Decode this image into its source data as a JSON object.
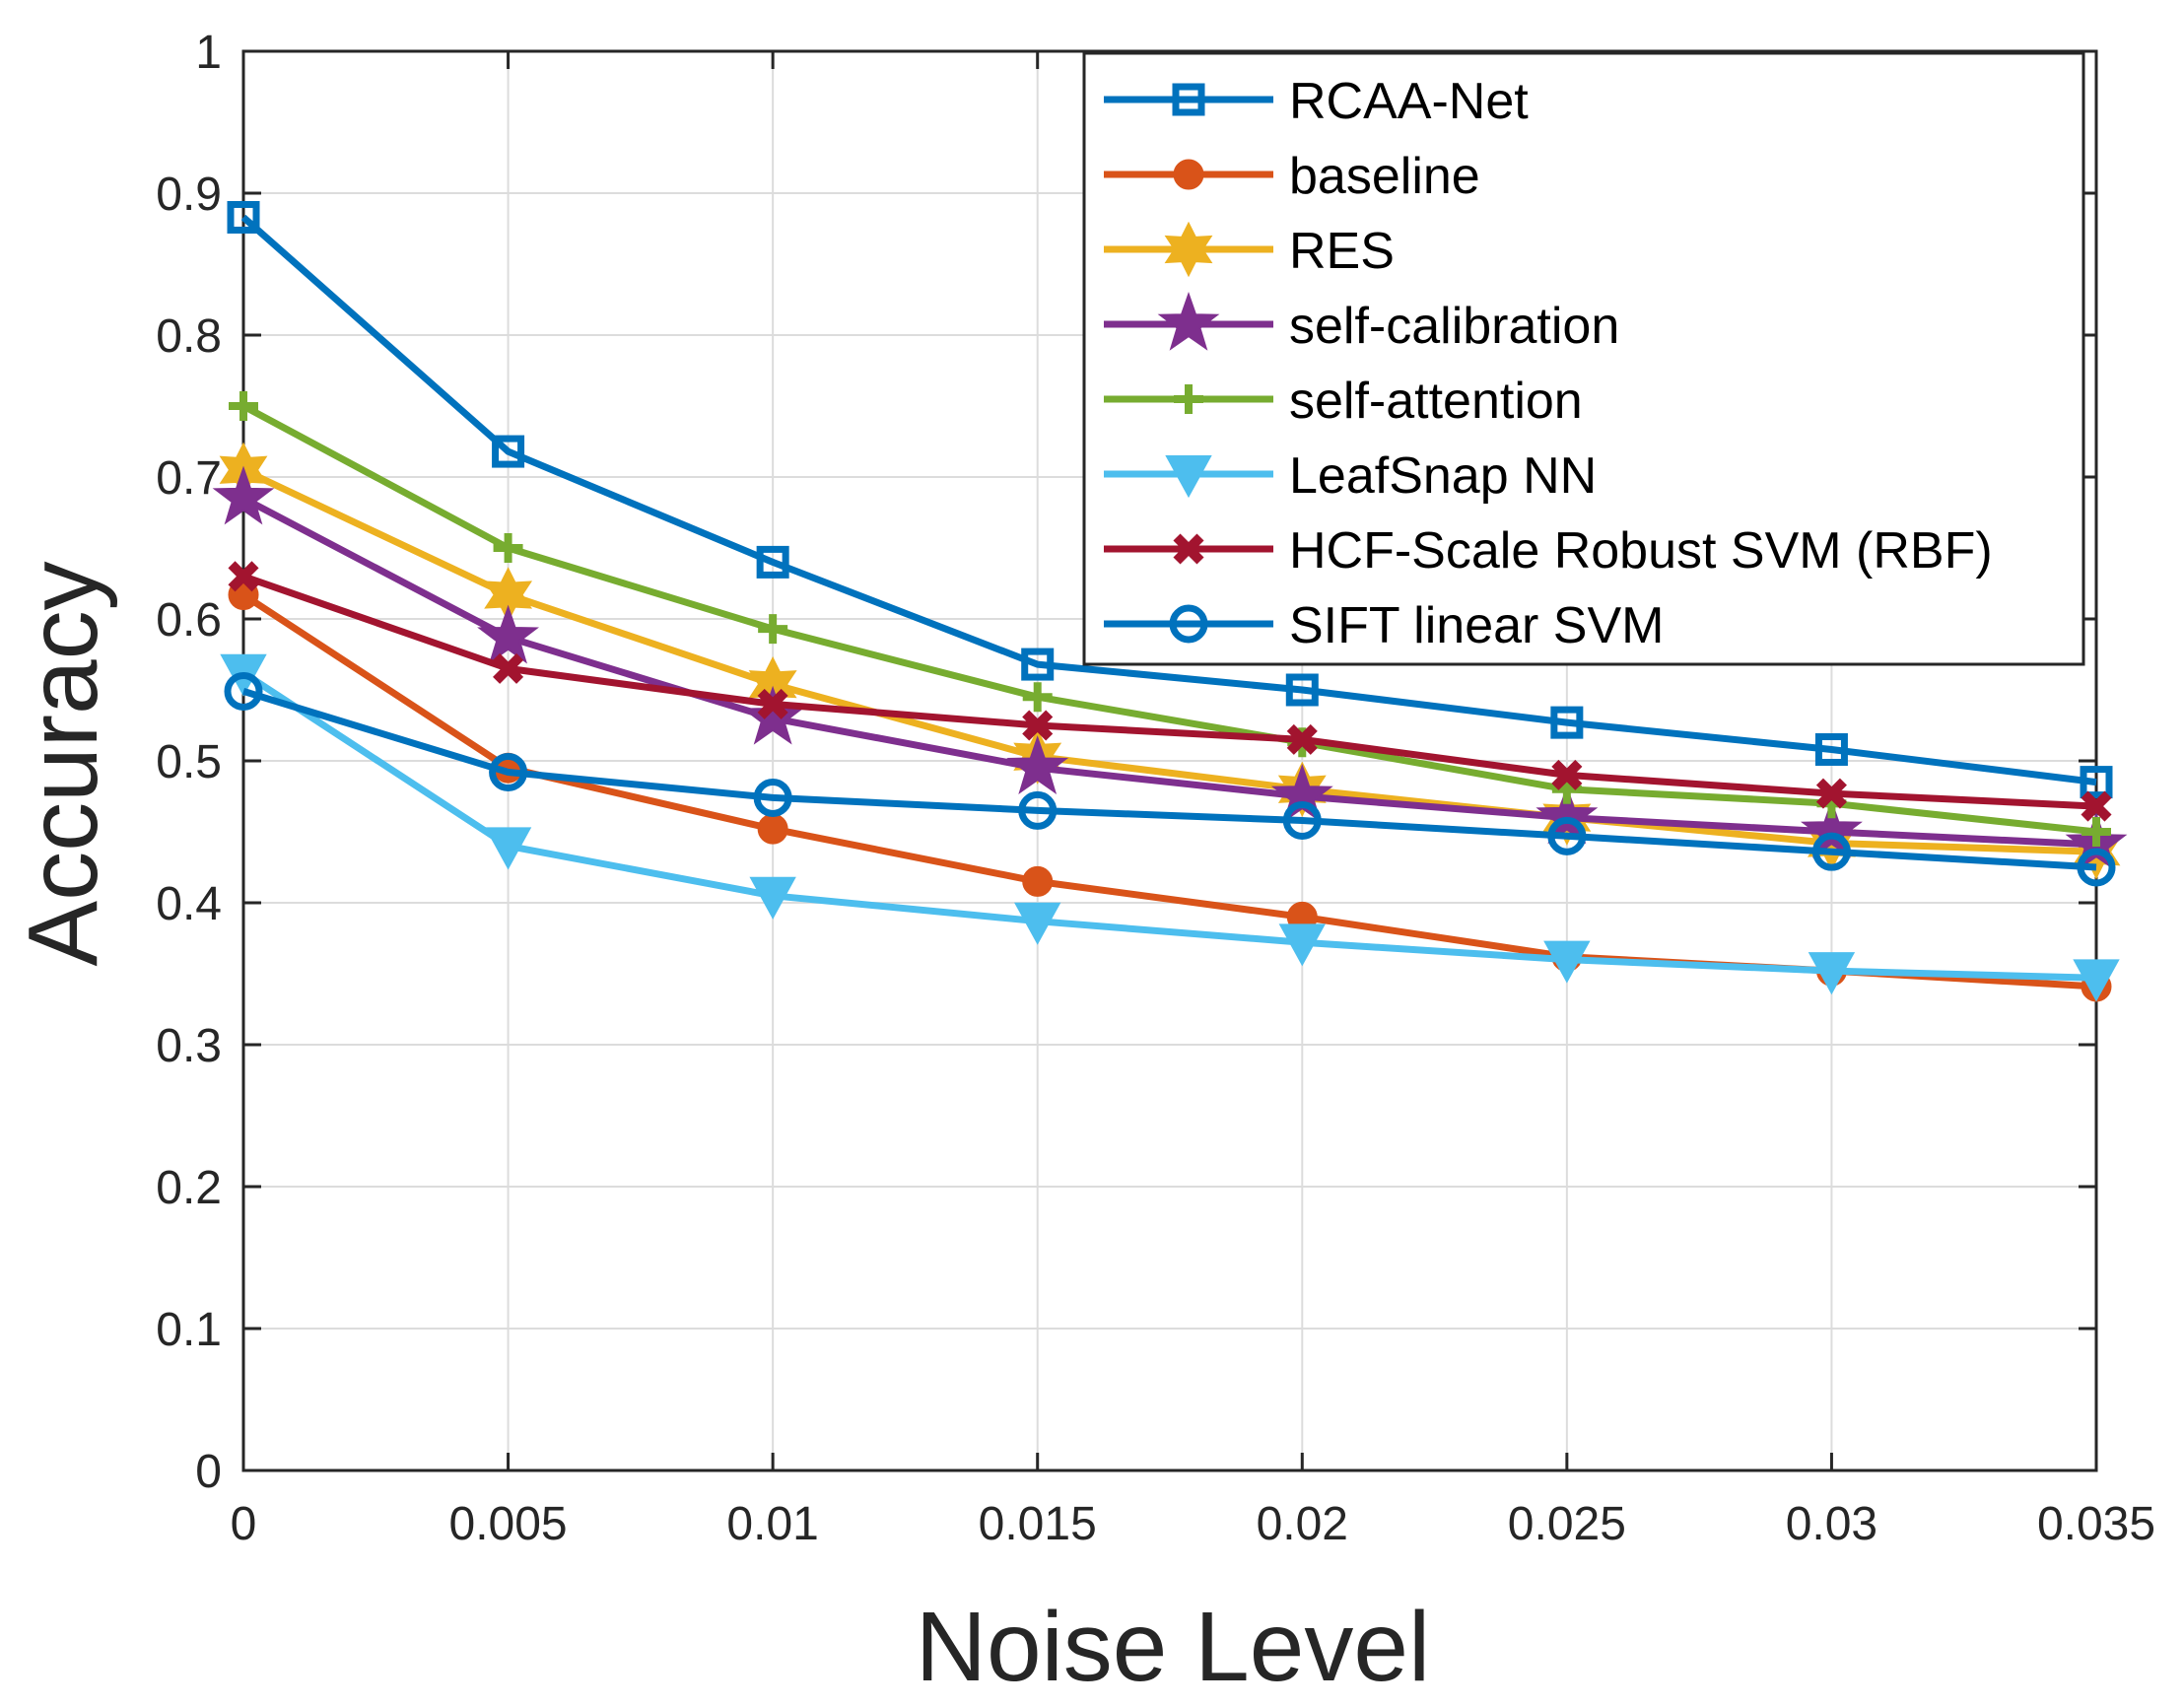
{
  "chart_data": {
    "type": "line",
    "title": "",
    "xlabel": "Noise Level",
    "ylabel": "Accuracy",
    "x": [
      0,
      0.005,
      0.01,
      0.015,
      0.02,
      0.025,
      0.03,
      0.035
    ],
    "x_tick_labels": [
      "0",
      "0.005",
      "0.01",
      "0.015",
      "0.02",
      "0.025",
      "0.03",
      "0.035"
    ],
    "y_tick_labels": [
      "0",
      "0.1",
      "0.2",
      "0.3",
      "0.4",
      "0.5",
      "0.6",
      "0.7",
      "0.8",
      "0.9",
      "1"
    ],
    "y_ticks": [
      0,
      0.1,
      0.2,
      0.3,
      0.4,
      0.5,
      0.6,
      0.7,
      0.8,
      0.9,
      1.0
    ],
    "xlim": [
      0,
      0.035
    ],
    "ylim": [
      0,
      1
    ],
    "grid": true,
    "legend_position": "top-right",
    "series": [
      {
        "name": "RCAA-Net",
        "color": "#0072BD",
        "marker": "square",
        "values": [
          0.883,
          0.718,
          0.64,
          0.568,
          0.55,
          0.527,
          0.508,
          0.485
        ]
      },
      {
        "name": "baseline",
        "color": "#D95319",
        "marker": "circle-filled",
        "values": [
          0.617,
          0.495,
          0.452,
          0.415,
          0.39,
          0.362,
          0.352,
          0.341
        ]
      },
      {
        "name": "RES",
        "color": "#EDB120",
        "marker": "hexagram",
        "values": [
          0.705,
          0.617,
          0.554,
          0.503,
          0.48,
          0.46,
          0.442,
          0.436
        ]
      },
      {
        "name": "self-calibration",
        "color": "#7E2F8E",
        "marker": "pentagram",
        "values": [
          0.685,
          0.587,
          0.53,
          0.495,
          0.475,
          0.46,
          0.45,
          0.441
        ]
      },
      {
        "name": "self-attention",
        "color": "#77AC30",
        "marker": "plus",
        "values": [
          0.75,
          0.65,
          0.593,
          0.545,
          0.513,
          0.48,
          0.47,
          0.45
        ]
      },
      {
        "name": "LeafSnap NN",
        "color": "#4DBEEE",
        "marker": "triangle-down",
        "values": [
          0.562,
          0.44,
          0.405,
          0.387,
          0.372,
          0.36,
          0.352,
          0.347
        ]
      },
      {
        "name": "HCF-Scale Robust SVM (RBF)",
        "color": "#A2142F",
        "marker": "x-filled",
        "values": [
          0.63,
          0.565,
          0.54,
          0.525,
          0.515,
          0.49,
          0.477,
          0.468
        ]
      },
      {
        "name": "SIFT linear SVM",
        "color": "#0072BD",
        "marker": "circle-open",
        "values": [
          0.549,
          0.492,
          0.474,
          0.465,
          0.458,
          0.447,
          0.436,
          0.425
        ]
      }
    ]
  }
}
